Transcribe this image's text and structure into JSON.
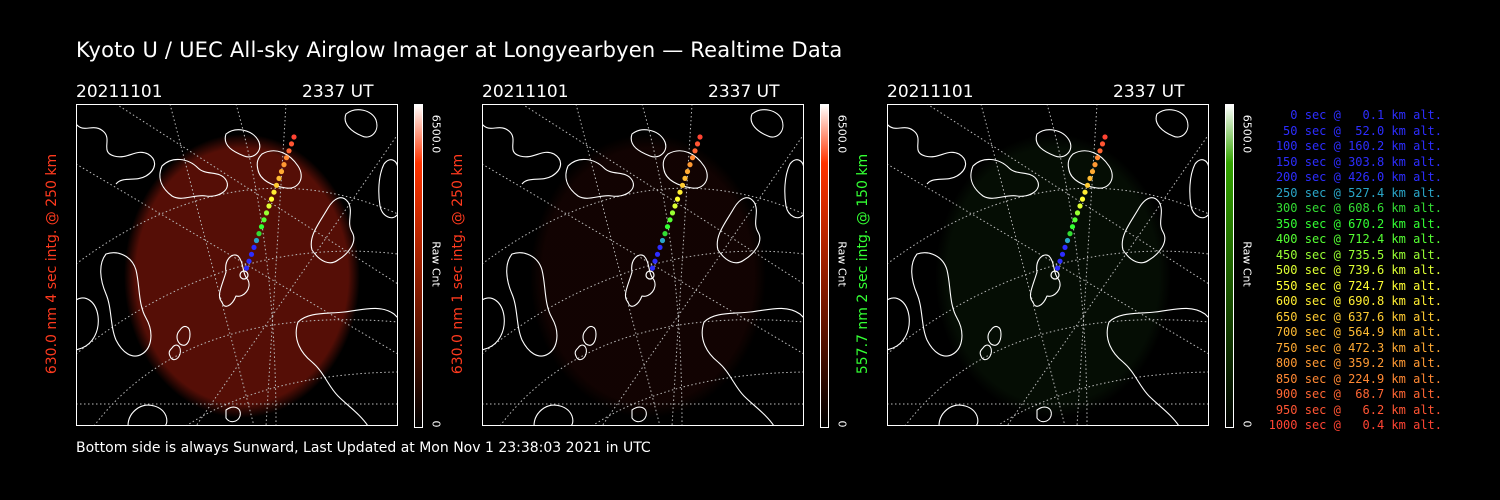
{
  "title": "Kyoto U / UEC All-sky Airglow Imager at Longyearbyen — Realtime Data",
  "footer": "Bottom side is always Sunward, Last Updated at Mon Nov  1 23:38:03 2021 in UTC",
  "panels": [
    {
      "date": "20211101",
      "time": "2337 UT",
      "side_label": "630.0 nm 4 sec intg. @ 250 km",
      "label_color": "#ff3a1e",
      "colorbar": {
        "max": "6500.0",
        "min": "0",
        "unit": "Raw Cnt",
        "high_color": "#ff3300"
      },
      "glow_color": "#6a1208",
      "glow_opacity": 0.8
    },
    {
      "date": "20211101",
      "time": "2337 UT",
      "side_label": "630.0 nm 1 sec intg. @ 250 km",
      "label_color": "#ff3a1e",
      "colorbar": {
        "max": "6500.0",
        "min": "0",
        "unit": "Raw Cnt",
        "high_color": "#ff3300"
      },
      "glow_color": "#3a0a05",
      "glow_opacity": 0.3
    },
    {
      "date": "20211101",
      "time": "2337 UT",
      "side_label": "557.7 nm 2 sec intg. @ 150 km",
      "label_color": "#33ff33",
      "colorbar": {
        "max": "6500.0",
        "min": "0",
        "unit": "Raw Cnt",
        "high_color": "#33a300"
      },
      "glow_color": "#0a1a08",
      "glow_opacity": 0.5
    }
  ],
  "legend": [
    {
      "text": "   0 sec @   0.1 km alt.",
      "color": "#2d2dff"
    },
    {
      "text": "  50 sec @  52.0 km alt.",
      "color": "#2d2dff"
    },
    {
      "text": " 100 sec @ 160.2 km alt.",
      "color": "#2d2dff"
    },
    {
      "text": " 150 sec @ 303.8 km alt.",
      "color": "#2d2dff"
    },
    {
      "text": " 200 sec @ 426.0 km alt.",
      "color": "#2d2dff"
    },
    {
      "text": " 250 sec @ 527.4 km alt.",
      "color": "#2aa6c8"
    },
    {
      "text": " 300 sec @ 608.6 km alt.",
      "color": "#33dd33"
    },
    {
      "text": " 350 sec @ 670.2 km alt.",
      "color": "#33ff33"
    },
    {
      "text": " 400 sec @ 712.4 km alt.",
      "color": "#55ff33"
    },
    {
      "text": " 450 sec @ 735.5 km alt.",
      "color": "#99ff33"
    },
    {
      "text": " 500 sec @ 739.6 km alt.",
      "color": "#ddff33"
    },
    {
      "text": " 550 sec @ 724.7 km alt.",
      "color": "#ffff33"
    },
    {
      "text": " 600 sec @ 690.8 km alt.",
      "color": "#ffee33"
    },
    {
      "text": " 650 sec @ 637.6 km alt.",
      "color": "#ffcc33"
    },
    {
      "text": " 700 sec @ 564.9 km alt.",
      "color": "#ffbb33"
    },
    {
      "text": " 750 sec @ 472.3 km alt.",
      "color": "#ffaa33"
    },
    {
      "text": " 800 sec @ 359.2 km alt.",
      "color": "#ff9933"
    },
    {
      "text": " 850 sec @ 224.9 km alt.",
      "color": "#ff8833"
    },
    {
      "text": " 900 sec @  68.7 km alt.",
      "color": "#ff6633"
    },
    {
      "text": " 950 sec @   6.2 km alt.",
      "color": "#ff5533"
    },
    {
      "text": "1000 sec @   0.4 km alt.",
      "color": "#ff4433"
    }
  ]
}
